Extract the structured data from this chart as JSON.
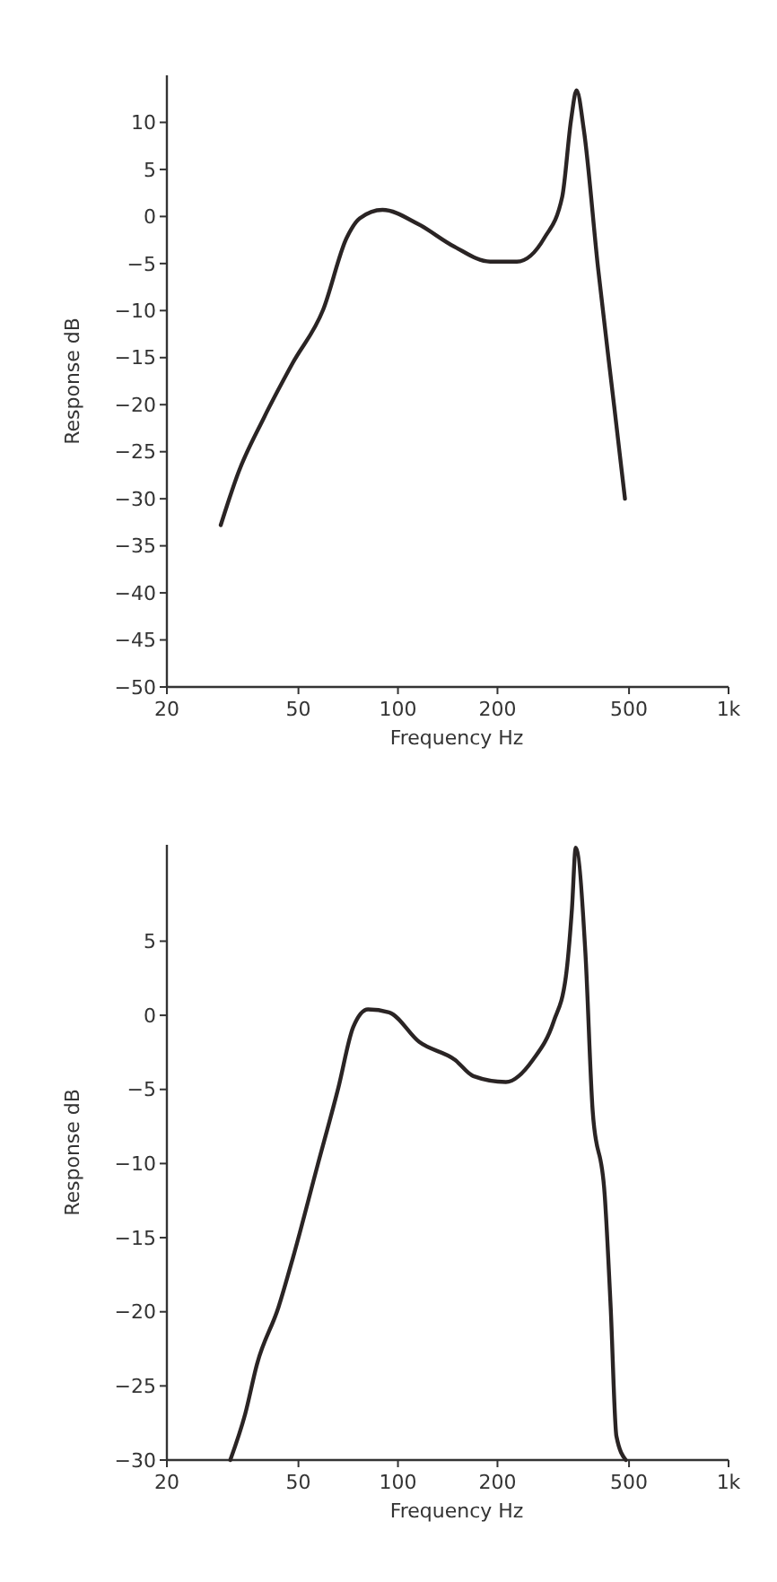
{
  "chart_data": [
    {
      "type": "line",
      "xlabel": "Frequency  Hz",
      "ylabel": "Response  dB",
      "log": "x",
      "grid": false,
      "marker": "none",
      "line_style": "solid",
      "xlim": [
        20,
        1000
      ],
      "ylim": [
        -50,
        15
      ],
      "xticks": [
        20,
        50,
        100,
        200,
        500,
        {
          "value": 1000,
          "label": "1k"
        }
      ],
      "yticks": [
        -50,
        -45,
        -40,
        -35,
        -30,
        -25,
        -20,
        -15,
        -10,
        -5,
        0,
        5,
        10
      ],
      "series": [
        {
          "color": "#2a2424",
          "x": [
            29.1,
            33,
            39.3,
            48,
            59.4,
            69.9,
            76.6,
            89.8,
            115,
            148,
            190,
            229,
            277,
            314,
            334,
            347,
            365,
            403,
            451,
            486
          ],
          "values": [
            -32.8,
            -27.1,
            -21.4,
            -15.6,
            -9.9,
            -2.3,
            -0.2,
            0.7,
            -0.8,
            -3.2,
            -4.8,
            -4.8,
            -2.3,
            2.1,
            10.3,
            13.4,
            9.2,
            -5.5,
            -20.2,
            -30
          ]
        }
      ]
    },
    {
      "type": "line",
      "xlabel": "Frequency  Hz",
      "ylabel": "Response  dB",
      "log": "x",
      "grid": false,
      "marker": "none",
      "line_style": "solid",
      "xlim": [
        20,
        1000
      ],
      "ylim": [
        -30,
        11.5
      ],
      "xticks": [
        20,
        50,
        100,
        200,
        500,
        {
          "value": 1000,
          "label": "1k"
        }
      ],
      "yticks": [
        -30,
        -25,
        -20,
        -15,
        -10,
        -5,
        0,
        5
      ],
      "series": [
        {
          "color": "#2a2424",
          "x": [
            31.1,
            34.5,
            37.5,
            43.5,
            48.2,
            57,
            66,
            73.2,
            81.2,
            94,
            116,
            148.7,
            169,
            212,
            256,
            296,
            322,
            336,
            345,
            369,
            388,
            422,
            440,
            458,
            489
          ],
          "values": [
            -30,
            -26.9,
            -23.5,
            -19.7,
            -16.3,
            -10.2,
            -4.9,
            -0.8,
            0.4,
            0.2,
            -1.8,
            -3,
            -4.1,
            -4.5,
            -3,
            -0.4,
            2.6,
            7.2,
            11.3,
            4.2,
            -6.4,
            -12.1,
            -19.7,
            -28.4,
            -30
          ]
        }
      ]
    }
  ]
}
